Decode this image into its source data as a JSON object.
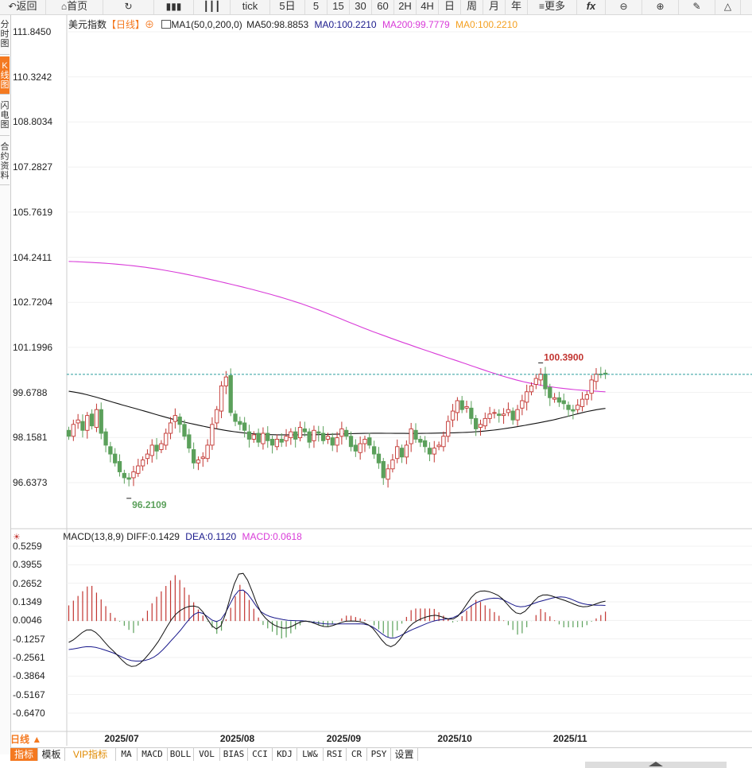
{
  "toolbar": {
    "items": [
      {
        "icon": "back-icon",
        "label": "返回"
      },
      {
        "icon": "home-icon",
        "label": "首页"
      },
      {
        "icon": "refresh-icon",
        "label": ""
      },
      {
        "icon": "bars-icon",
        "label": ""
      },
      {
        "icon": "candle-icon",
        "label": ""
      },
      {
        "icon": "",
        "label": "tick"
      },
      {
        "icon": "",
        "label": "5日"
      },
      {
        "icon": "",
        "label": "5"
      },
      {
        "icon": "",
        "label": "15"
      },
      {
        "icon": "",
        "label": "30"
      },
      {
        "icon": "",
        "label": "60"
      },
      {
        "icon": "",
        "label": "2H"
      },
      {
        "icon": "",
        "label": "4H"
      },
      {
        "icon": "",
        "label": "日"
      },
      {
        "icon": "",
        "label": "周"
      },
      {
        "icon": "",
        "label": "月"
      },
      {
        "icon": "",
        "label": "年"
      },
      {
        "icon": "menu-icon",
        "label": "更多"
      },
      {
        "icon": "fx-icon",
        "label": "fx"
      },
      {
        "icon": "zoom-out-icon",
        "label": ""
      },
      {
        "icon": "zoom-in-icon",
        "label": ""
      },
      {
        "icon": "pen-icon",
        "label": ""
      },
      {
        "icon": "triangle-icon",
        "label": ""
      }
    ]
  },
  "sidebar": {
    "tabs": [
      {
        "label": "分时图",
        "active": false
      },
      {
        "label": "K线图",
        "active": true
      },
      {
        "label": "闪电图",
        "active": false
      },
      {
        "label": "合约资料",
        "active": false
      }
    ]
  },
  "main_header": {
    "name": "美元指数",
    "period": "【日线】",
    "period_icon": "plus-circle-icon",
    "ma_icon": "indicator-icon",
    "ma_label": "MA1(50,0,200,0)",
    "ma50": "MA50:98.8853",
    "ma0a": "MA0:100.2210",
    "ma200": "MA200:99.7779",
    "ma0b": "MA0:100.2210"
  },
  "macd_header": {
    "icon": "sun-icon",
    "label": "MACD(13,8,9)",
    "diff": "DIFF:0.1429",
    "dea": "DEA:0.1120",
    "macd": "MACD:0.0618"
  },
  "colors": {
    "up": "#c23531",
    "down": "#5ba05b",
    "ma200": "#d83ad8",
    "ma50": "#111111",
    "dea": "#1a1a8c",
    "accent": "#f47920"
  },
  "bottom_tabs": [
    {
      "label": "指标",
      "active": true
    },
    {
      "label": "模板",
      "active": false
    },
    {
      "label": "VIP指标",
      "active": false,
      "vip": true
    },
    {
      "label": "MA"
    },
    {
      "label": "MACD"
    },
    {
      "label": "BOLL"
    },
    {
      "label": "VOL"
    },
    {
      "label": "BIAS"
    },
    {
      "label": "CCI"
    },
    {
      "label": "KDJ"
    },
    {
      "label": "LW&"
    },
    {
      "label": "RSI"
    },
    {
      "label": "CR"
    },
    {
      "label": "PSY"
    },
    {
      "label": "设置"
    }
  ],
  "chart_data": [
    {
      "type": "candlestick",
      "title": "美元指数 日线",
      "yticks": [
        "111.8450",
        "110.3242",
        "108.8034",
        "107.2827",
        "105.7619",
        "104.2411",
        "102.7204",
        "101.1996",
        "99.6788",
        "98.1581",
        "96.6373"
      ],
      "ylim": [
        95.65,
        112.25
      ],
      "xticks": [
        "2025/07",
        "2025/08",
        "2025/09",
        "2025/10",
        "2025/11"
      ],
      "xtick_index": [
        12,
        37,
        60,
        84,
        109
      ],
      "high_label": "100.3900",
      "low_label": "96.2109",
      "last_price": 100.29,
      "closes": [
        98.2,
        98.6,
        98.75,
        98.4,
        98.9,
        98.55,
        99.1,
        98.3,
        97.9,
        97.6,
        97.3,
        97.0,
        96.8,
        96.75,
        97.0,
        97.2,
        97.4,
        97.6,
        97.9,
        97.7,
        97.95,
        98.3,
        98.65,
        98.9,
        98.6,
        98.2,
        97.8,
        97.3,
        97.4,
        97.5,
        97.9,
        98.6,
        99.1,
        99.9,
        100.2,
        99.0,
        98.7,
        98.6,
        98.4,
        98.1,
        98.25,
        98.0,
        98.3,
        98.05,
        97.9,
        98.1,
        98.0,
        98.2,
        98.35,
        98.1,
        98.5,
        98.35,
        98.0,
        98.4,
        98.3,
        98.05,
        98.2,
        97.9,
        98.15,
        98.45,
        98.2,
        97.85,
        97.7,
        97.95,
        98.1,
        97.9,
        97.6,
        97.3,
        96.8,
        97.1,
        97.4,
        97.85,
        97.5,
        97.9,
        98.45,
        98.1,
        98.0,
        97.85,
        97.6,
        97.8,
        97.9,
        98.2,
        98.7,
        99.05,
        99.4,
        99.1,
        99.2,
        98.8,
        98.45,
        98.6,
        98.8,
        98.95,
        99.0,
        98.9,
        98.95,
        99.1,
        98.75,
        99.1,
        99.4,
        99.7,
        99.9,
        100.15,
        100.3,
        99.8,
        99.5,
        99.5,
        99.35,
        99.3,
        99.1,
        99.05,
        99.25,
        99.45,
        99.6,
        100.1,
        100.3,
        100.28,
        100.29
      ],
      "ma200": [
        101.2,
        100.0
      ],
      "ma50_samples": [
        99.72,
        99.2,
        98.65,
        98.3,
        98.25,
        98.3,
        98.3,
        98.38,
        98.7,
        99.14
      ],
      "ma200_samples": [
        104.1,
        103.9,
        103.4,
        102.7,
        101.7,
        100.8,
        100.0,
        99.7
      ]
    },
    {
      "type": "macd",
      "yticks": [
        "0.5259",
        "0.3955",
        "0.2652",
        "0.1349",
        "0.0046",
        "-0.1257",
        "-0.2561",
        "-0.3864",
        "-0.5167",
        "-0.6470"
      ],
      "ylim": [
        -0.72,
        0.58
      ],
      "diff_samples": [
        -0.15,
        -0.06,
        -0.2,
        -0.32,
        -0.18,
        0.05,
        0.1,
        -0.05,
        0.34,
        0.05,
        -0.05,
        0.0,
        -0.04,
        0.0,
        -0.03,
        -0.18,
        -0.02,
        0.04,
        0.02,
        0.2,
        0.18,
        0.05,
        0.18,
        0.15,
        0.1,
        0.14
      ],
      "dea_samples": [
        -0.2,
        -0.18,
        -0.22,
        -0.28,
        -0.25,
        -0.1,
        0.06,
        0.0,
        0.22,
        0.06,
        0.01,
        0.0,
        -0.02,
        -0.02,
        -0.03,
        -0.12,
        -0.06,
        0.0,
        0.03,
        0.13,
        0.16,
        0.1,
        0.14,
        0.17,
        0.12,
        0.11
      ]
    }
  ]
}
